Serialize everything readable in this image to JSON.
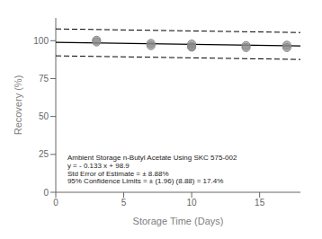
{
  "chart_data": {
    "type": "scatter",
    "xlabel": "Storage Time (Days)",
    "ylabel": "Recovery (%)",
    "xlim": [
      0,
      18
    ],
    "ylim": [
      0,
      115
    ],
    "xticks": [
      0,
      5,
      10,
      15
    ],
    "yticks": [
      0,
      25,
      50,
      75,
      100
    ],
    "grid": false,
    "series": [
      {
        "type": "line",
        "x": [
          0,
          18
        ],
        "values": [
          107.78,
          105.386
        ],
        "color": "black",
        "line_style": "dashed"
      },
      {
        "type": "line",
        "x": [
          0,
          18
        ],
        "values": [
          90.02,
          87.626
        ],
        "color": "black",
        "line_style": "dashed"
      },
      {
        "type": "line",
        "x": [
          0,
          18
        ],
        "values": [
          98.9,
          96.506
        ],
        "color": "black",
        "line_style": "solid"
      },
      {
        "type": "scatter",
        "x": [
          3,
          3,
          7,
          7,
          10,
          10,
          10,
          14,
          14,
          17,
          17
        ],
        "values": [
          100.3,
          99.2,
          98.2,
          96.8,
          97.8,
          96.2,
          95.8,
          96.8,
          95.5,
          97.0,
          95.5
        ],
        "color": "#888888",
        "marker": "circle"
      }
    ],
    "annotations": [
      "Ambient Storage n-Butyl Acetate Using SKC 575-002",
      "y = - 0.133 x + 98.9",
      "Std Error of Estimate = ± 8.88%",
      "95% Confidence Limits = ± (1.96) (8.88) = 17.4%"
    ]
  }
}
